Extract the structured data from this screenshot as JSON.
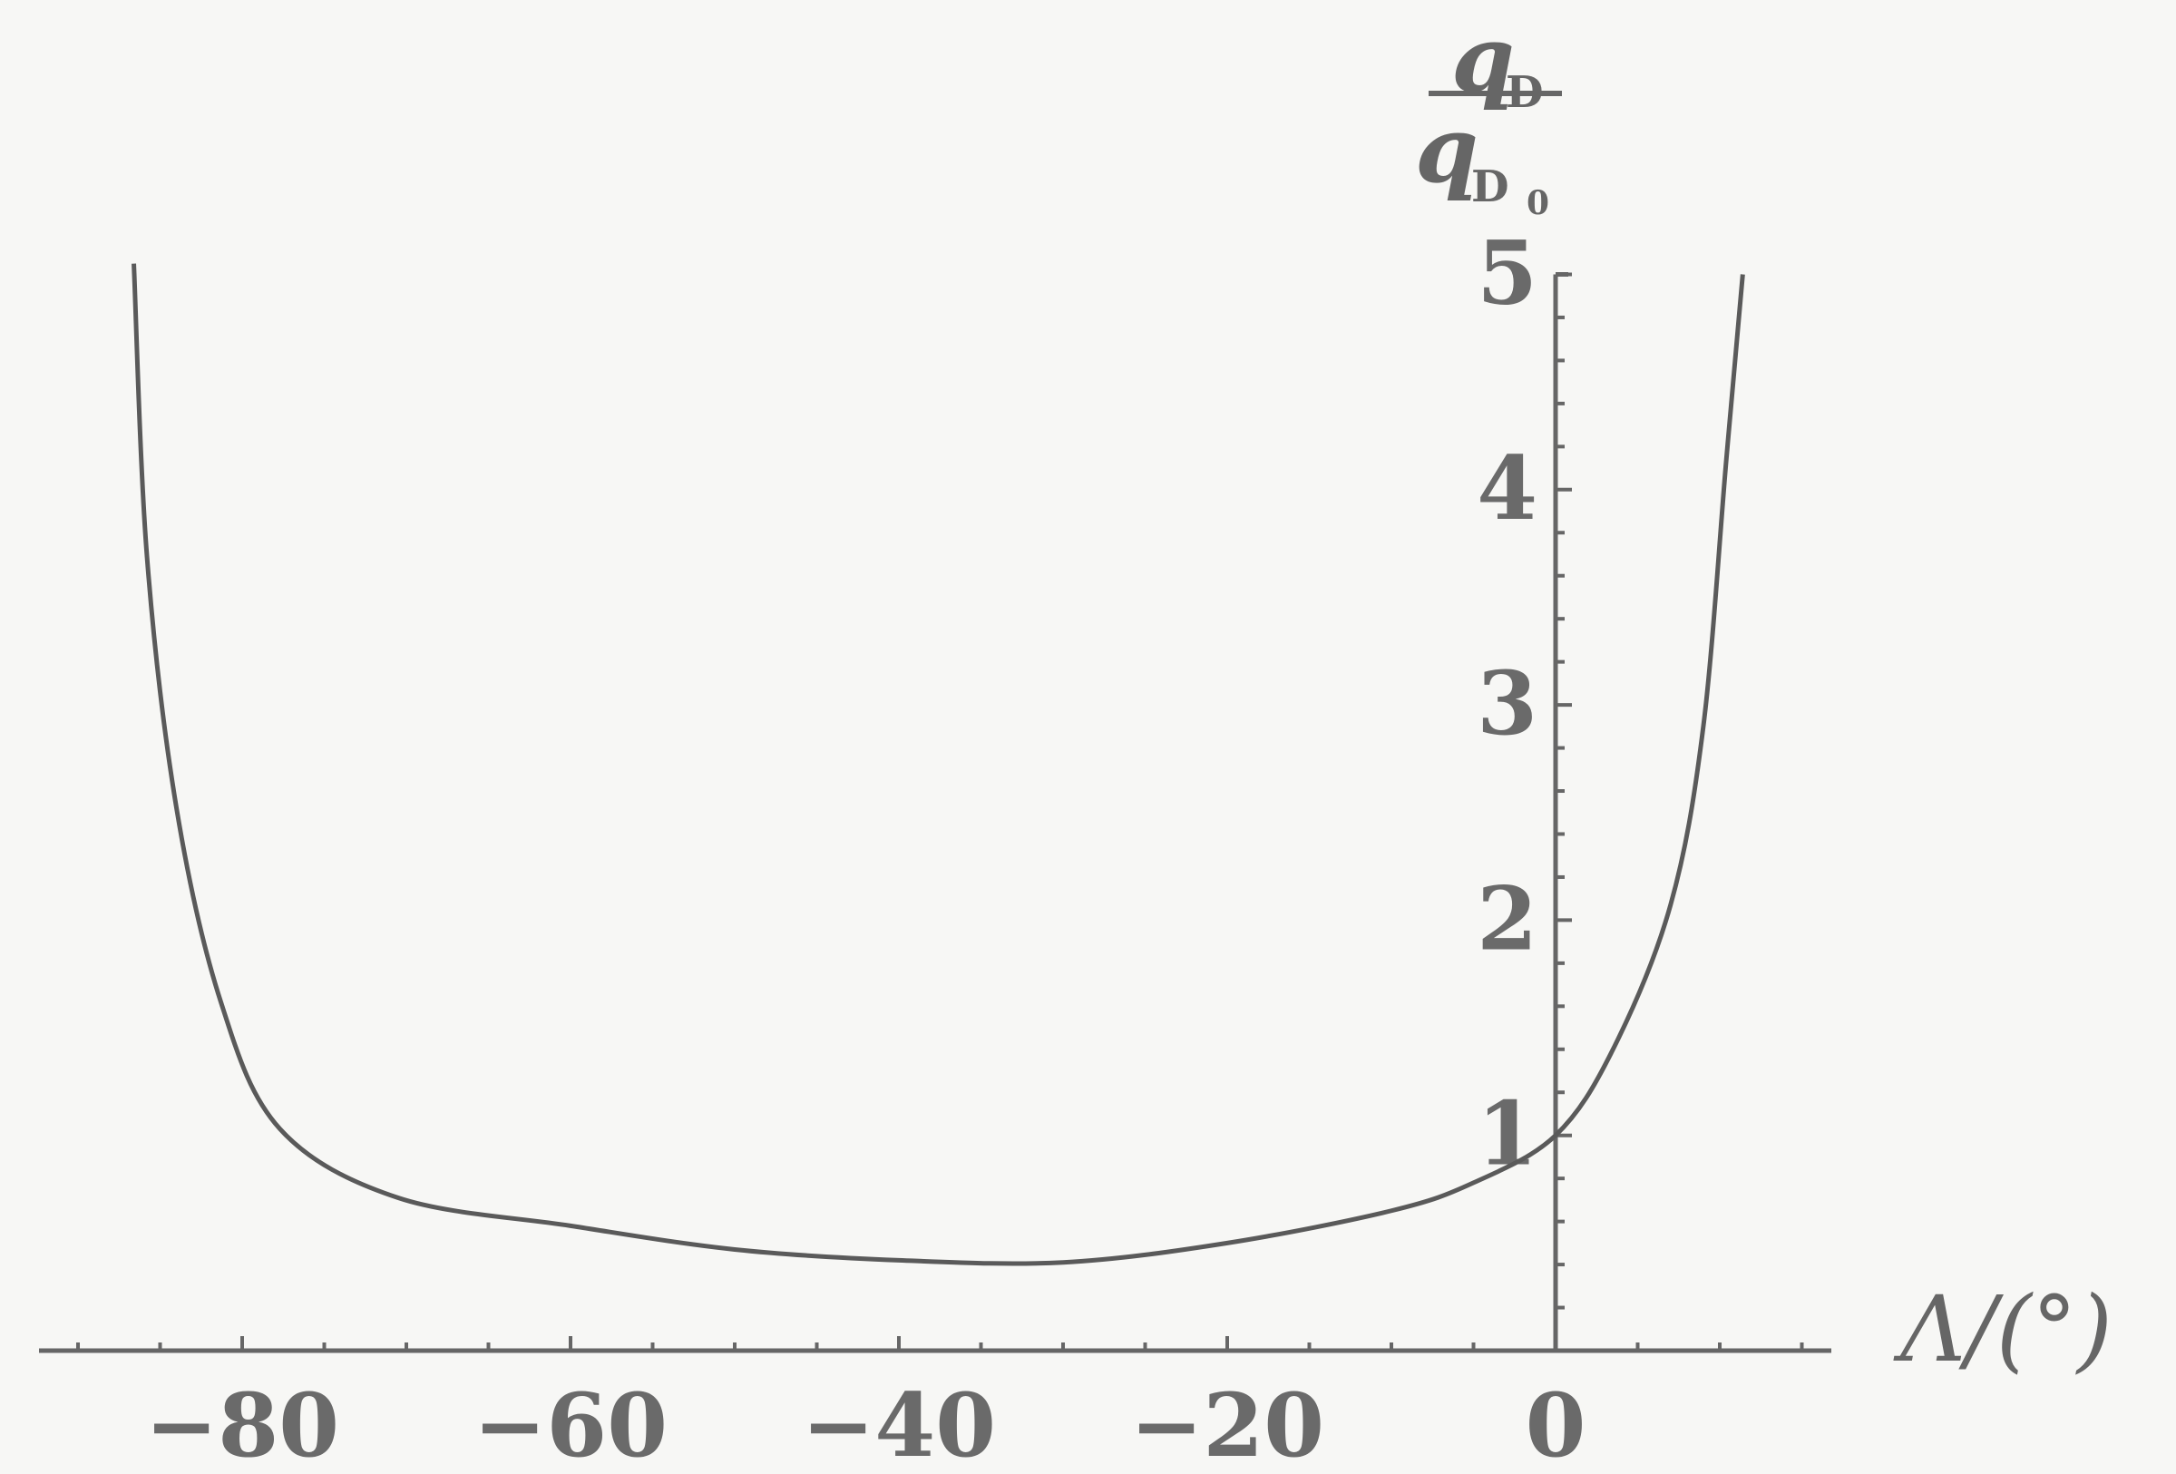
{
  "chart_data": {
    "type": "line",
    "title": "",
    "xlabel": "Λ/(°)",
    "ylabel": {
      "numerator": "q",
      "numerator_sub": "D",
      "denominator": "q",
      "denominator_sub": "D",
      "denominator_subsub": "0"
    },
    "xlim": [
      -92,
      17
    ],
    "ylim": [
      0,
      5
    ],
    "xticks": [
      -80,
      -60,
      -40,
      -20,
      0
    ],
    "xtick_labels": [
      "−80",
      "−60",
      "−40",
      "−20",
      "0"
    ],
    "yticks": [
      1,
      2,
      3,
      4,
      5
    ],
    "ytick_labels": [
      "1",
      "2",
      "3",
      "4",
      "5"
    ],
    "x_minor_step": 5,
    "y_minor_step": 0.2,
    "grid": false,
    "line_color": "#5a5a5a",
    "series": [
      {
        "x": [
          -86.6,
          -85.8,
          -84.0,
          -81.3,
          -77.7,
          -70.5,
          -60,
          -50,
          -40,
          -30,
          -20,
          -10,
          -5,
          0,
          3.5,
          7,
          9,
          10.4,
          11.4
        ],
        "y": [
          5.05,
          3.69,
          2.52,
          1.62,
          1.03,
          0.71,
          0.58,
          0.47,
          0.42,
          0.41,
          0.5,
          0.65,
          0.78,
          1.0,
          1.4,
          2.07,
          2.9,
          4.14,
          5.0
        ]
      }
    ]
  }
}
